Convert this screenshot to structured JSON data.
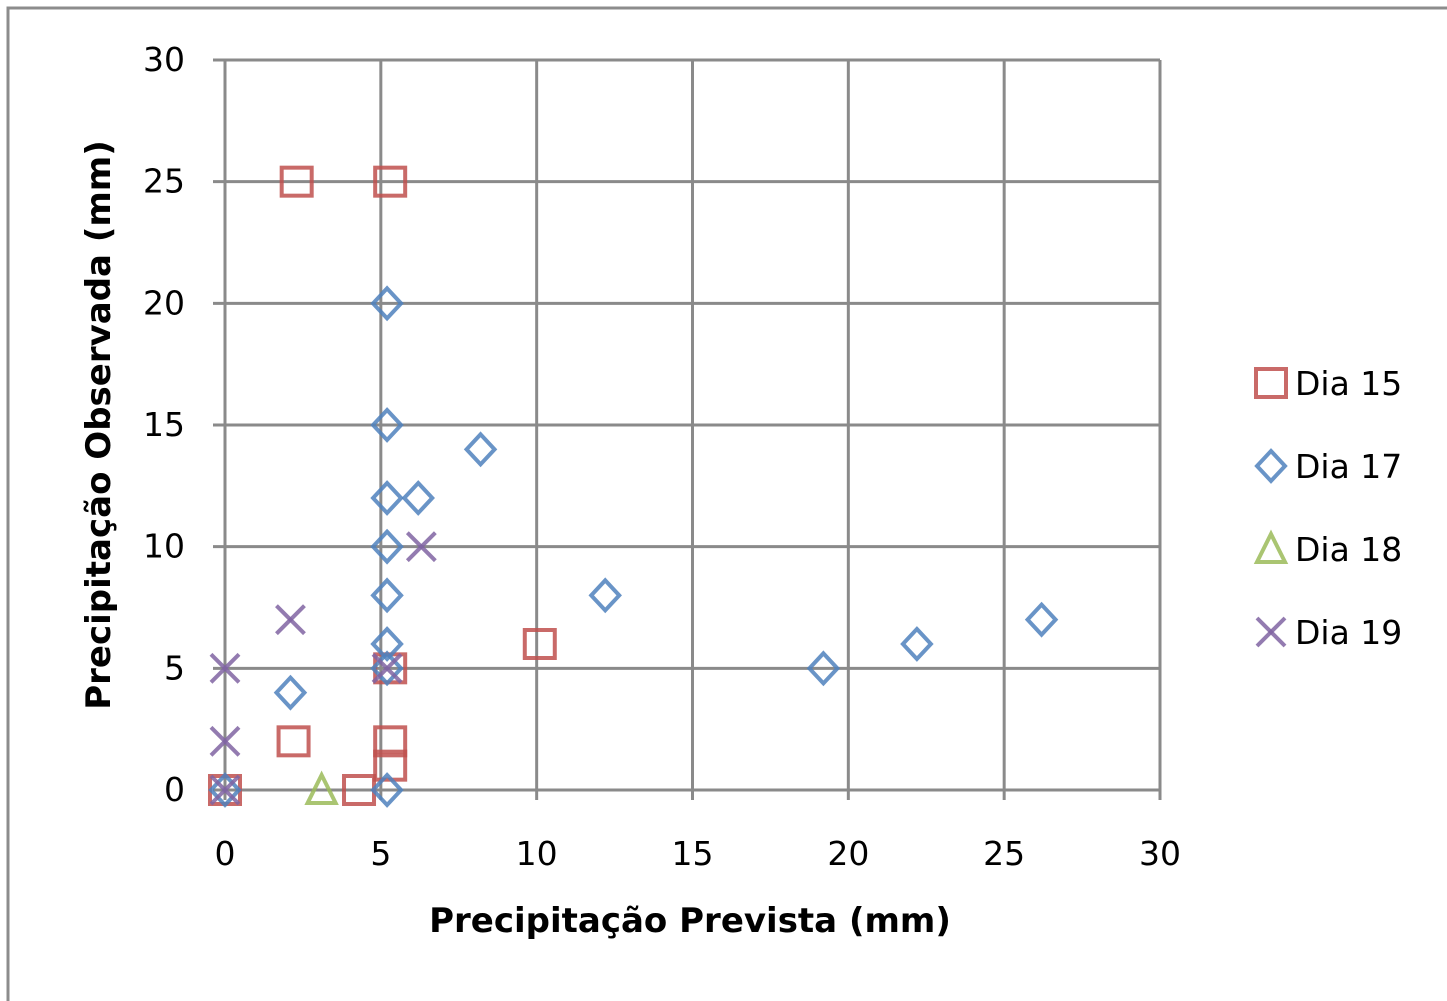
{
  "chart_data": {
    "type": "scatter",
    "title": "",
    "xlabel": "Precipitação Prevista (mm)",
    "ylabel": "Precipitação Observada (mm)",
    "xlim": [
      0,
      30
    ],
    "ylim": [
      0,
      30
    ],
    "x_ticks": [
      "0",
      "5",
      "10",
      "15",
      "20",
      "25",
      "30"
    ],
    "y_ticks": [
      "0",
      "5",
      "10",
      "15",
      "20",
      "25",
      "30"
    ],
    "grid": true,
    "legend_position": "right",
    "series": [
      {
        "name": "Dia 15",
        "marker": "square",
        "color": "#c0504d",
        "points": [
          {
            "x": 0,
            "y": 0
          },
          {
            "x": 2.2,
            "y": 2
          },
          {
            "x": 2.3,
            "y": 25
          },
          {
            "x": 4.3,
            "y": 0
          },
          {
            "x": 5.3,
            "y": 25
          },
          {
            "x": 5.3,
            "y": 2
          },
          {
            "x": 5.3,
            "y": 1
          },
          {
            "x": 5.3,
            "y": 5
          },
          {
            "x": 10.1,
            "y": 6
          }
        ]
      },
      {
        "name": "Dia 17",
        "marker": "diamond",
        "color": "#4f81bd",
        "points": [
          {
            "x": 0,
            "y": 0
          },
          {
            "x": 2.1,
            "y": 4
          },
          {
            "x": 5.2,
            "y": 20
          },
          {
            "x": 5.2,
            "y": 15
          },
          {
            "x": 5.2,
            "y": 12
          },
          {
            "x": 5.2,
            "y": 10
          },
          {
            "x": 5.2,
            "y": 8
          },
          {
            "x": 5.2,
            "y": 6
          },
          {
            "x": 5.2,
            "y": 5
          },
          {
            "x": 5.2,
            "y": 0
          },
          {
            "x": 6.2,
            "y": 12
          },
          {
            "x": 8.2,
            "y": 14
          },
          {
            "x": 12.2,
            "y": 8
          },
          {
            "x": 19.2,
            "y": 5
          },
          {
            "x": 22.2,
            "y": 6
          },
          {
            "x": 26.2,
            "y": 7
          }
        ]
      },
      {
        "name": "Dia 18",
        "marker": "triangle",
        "color": "#9bbb59",
        "points": [
          {
            "x": 3.1,
            "y": 0
          }
        ]
      },
      {
        "name": "Dia 19",
        "marker": "x",
        "color": "#8064a2",
        "points": [
          {
            "x": 0,
            "y": 5
          },
          {
            "x": 0,
            "y": 2
          },
          {
            "x": 0,
            "y": 0
          },
          {
            "x": 2.1,
            "y": 7
          },
          {
            "x": 5.2,
            "y": 5
          },
          {
            "x": 6.3,
            "y": 10
          }
        ]
      }
    ]
  }
}
